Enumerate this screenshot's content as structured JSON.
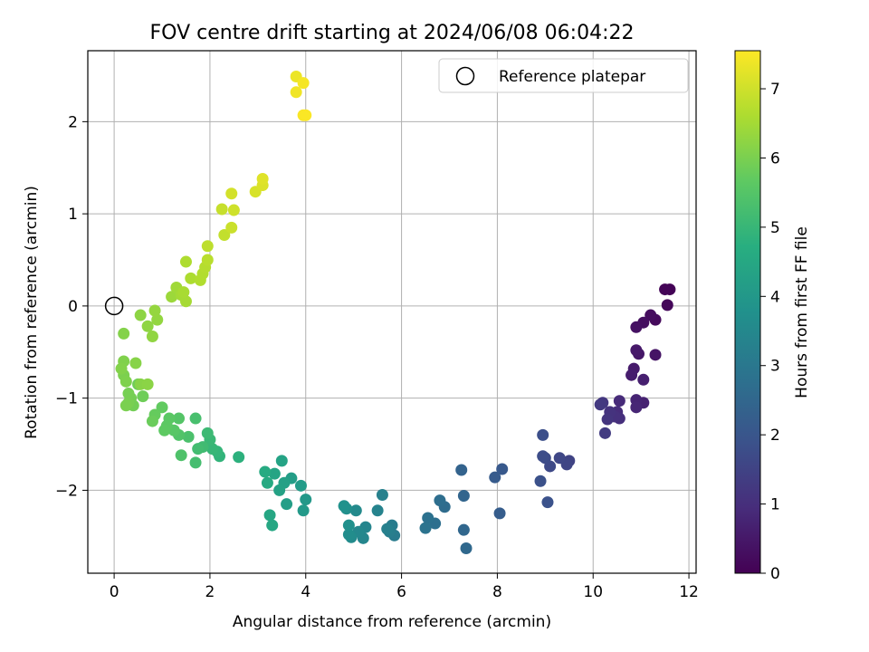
{
  "chart_data": {
    "type": "scatter",
    "title": "FOV centre drift starting at 2024/06/08 06:04:22",
    "xlabel": "Angular distance from reference (arcmin)",
    "ylabel": "Rotation from reference (arcmin)",
    "xlim": [
      -0.55,
      12.15
    ],
    "ylim": [
      -2.9,
      2.77
    ],
    "xticks": [
      0,
      2,
      4,
      6,
      8,
      10,
      12
    ],
    "yticks": [
      -2,
      -1,
      0,
      1,
      2
    ],
    "grid": true,
    "legend": {
      "location": "top-right",
      "entries": [
        "Reference platepar"
      ]
    },
    "reference_point": {
      "x": 0,
      "y": 0
    },
    "colorbar": {
      "label": "Hours from first FF file",
      "min": 0,
      "max": 7.55,
      "ticks": [
        0,
        1,
        2,
        3,
        4,
        5,
        6,
        7
      ],
      "colormap": "viridis"
    },
    "points": [
      [
        11.6,
        0.18,
        0.05
      ],
      [
        11.5,
        0.18,
        0.08
      ],
      [
        11.55,
        0.01,
        0.12
      ],
      [
        11.3,
        -0.15,
        0.2
      ],
      [
        11.2,
        -0.1,
        0.25
      ],
      [
        11.05,
        -0.18,
        0.3
      ],
      [
        10.9,
        -0.23,
        0.35
      ],
      [
        11.3,
        -0.53,
        0.4
      ],
      [
        10.95,
        -0.52,
        0.45
      ],
      [
        10.9,
        -0.48,
        0.5
      ],
      [
        10.85,
        -0.68,
        0.55
      ],
      [
        10.8,
        -0.75,
        0.6
      ],
      [
        11.05,
        -0.8,
        0.65
      ],
      [
        11.05,
        -1.05,
        0.7
      ],
      [
        10.9,
        -1.02,
        0.75
      ],
      [
        10.9,
        -1.1,
        0.8
      ],
      [
        10.55,
        -1.03,
        0.9
      ],
      [
        10.5,
        -1.15,
        0.95
      ],
      [
        10.55,
        -1.22,
        1.0
      ],
      [
        10.45,
        -1.2,
        1.05
      ],
      [
        10.35,
        -1.15,
        1.1
      ],
      [
        10.3,
        -1.23,
        1.15
      ],
      [
        10.2,
        -1.05,
        1.2
      ],
      [
        10.15,
        -1.07,
        1.25
      ],
      [
        10.25,
        -1.38,
        1.3
      ],
      [
        9.5,
        -1.68,
        1.5
      ],
      [
        9.45,
        -1.72,
        1.55
      ],
      [
        9.3,
        -1.65,
        1.6
      ],
      [
        9.1,
        -1.74,
        1.65
      ],
      [
        9.0,
        -1.65,
        1.7
      ],
      [
        8.95,
        -1.63,
        1.75
      ],
      [
        8.95,
        -1.4,
        1.8
      ],
      [
        8.9,
        -1.9,
        1.85
      ],
      [
        9.05,
        -2.13,
        1.9
      ],
      [
        8.1,
        -1.77,
        2.1
      ],
      [
        7.95,
        -1.86,
        2.15
      ],
      [
        8.05,
        -2.25,
        2.2
      ],
      [
        7.25,
        -1.78,
        2.4
      ],
      [
        7.3,
        -2.06,
        2.45
      ],
      [
        7.3,
        -2.43,
        2.5
      ],
      [
        7.35,
        -2.63,
        2.55
      ],
      [
        6.9,
        -2.18,
        2.65
      ],
      [
        6.8,
        -2.11,
        2.7
      ],
      [
        6.7,
        -2.36,
        2.75
      ],
      [
        6.55,
        -2.3,
        2.8
      ],
      [
        6.5,
        -2.41,
        2.85
      ],
      [
        5.85,
        -2.49,
        3.1
      ],
      [
        5.8,
        -2.38,
        3.15
      ],
      [
        5.75,
        -2.45,
        3.2
      ],
      [
        5.7,
        -2.42,
        3.25
      ],
      [
        5.6,
        -2.05,
        3.3
      ],
      [
        5.5,
        -2.22,
        3.35
      ],
      [
        5.25,
        -2.4,
        3.4
      ],
      [
        5.2,
        -2.52,
        3.45
      ],
      [
        5.1,
        -2.45,
        3.5
      ],
      [
        5.05,
        -2.22,
        3.55
      ],
      [
        4.95,
        -2.51,
        3.6
      ],
      [
        4.9,
        -2.48,
        3.65
      ],
      [
        4.85,
        -2.2,
        3.7
      ],
      [
        4.9,
        -2.38,
        3.75
      ],
      [
        4.8,
        -2.17,
        3.8
      ],
      [
        4.0,
        -2.1,
        4.0
      ],
      [
        3.95,
        -2.22,
        4.05
      ],
      [
        3.9,
        -1.95,
        4.1
      ],
      [
        3.7,
        -1.87,
        4.15
      ],
      [
        3.6,
        -2.15,
        4.2
      ],
      [
        3.55,
        -1.92,
        4.25
      ],
      [
        3.45,
        -2.0,
        4.3
      ],
      [
        3.5,
        -1.68,
        4.35
      ],
      [
        3.35,
        -1.82,
        4.4
      ],
      [
        3.25,
        -2.27,
        4.45
      ],
      [
        3.3,
        -2.38,
        4.5
      ],
      [
        3.2,
        -1.92,
        4.55
      ],
      [
        3.15,
        -1.8,
        4.6
      ],
      [
        2.6,
        -1.64,
        4.8
      ],
      [
        2.2,
        -1.63,
        4.9
      ],
      [
        2.15,
        -1.58,
        4.95
      ],
      [
        2.05,
        -1.55,
        5.0
      ],
      [
        2.0,
        -1.45,
        5.05
      ],
      [
        1.95,
        -1.38,
        5.1
      ],
      [
        1.85,
        -1.53,
        5.15
      ],
      [
        1.75,
        -1.55,
        5.2
      ],
      [
        1.7,
        -1.7,
        5.25
      ],
      [
        1.7,
        -1.22,
        5.3
      ],
      [
        1.55,
        -1.42,
        5.35
      ],
      [
        1.4,
        -1.62,
        5.4
      ],
      [
        1.35,
        -1.4,
        5.45
      ],
      [
        1.35,
        -1.22,
        5.5
      ],
      [
        1.25,
        -1.35,
        5.55
      ],
      [
        1.15,
        -1.22,
        5.6
      ],
      [
        1.1,
        -1.3,
        5.62
      ],
      [
        1.05,
        -1.35,
        5.65
      ],
      [
        1.0,
        -1.1,
        5.7
      ],
      [
        0.85,
        -1.18,
        5.75
      ],
      [
        0.8,
        -1.25,
        5.8
      ],
      [
        0.6,
        -0.98,
        5.85
      ],
      [
        0.5,
        -0.85,
        5.87
      ],
      [
        0.4,
        -1.08,
        5.9
      ],
      [
        0.35,
        -1.0,
        5.92
      ],
      [
        0.3,
        -0.95,
        5.95
      ],
      [
        0.3,
        -1.05,
        5.97
      ],
      [
        0.25,
        -1.08,
        6.0
      ],
      [
        0.2,
        -0.75,
        6.02
      ],
      [
        0.25,
        -0.82,
        6.05
      ],
      [
        0.2,
        -0.6,
        6.07
      ],
      [
        0.15,
        -0.68,
        6.1
      ],
      [
        0.2,
        -0.3,
        6.12
      ],
      [
        0.45,
        -0.62,
        6.15
      ],
      [
        0.55,
        -0.85,
        6.17
      ],
      [
        0.7,
        -0.85,
        6.2
      ],
      [
        0.55,
        -0.1,
        6.22
      ],
      [
        0.7,
        -0.22,
        6.25
      ],
      [
        0.8,
        -0.33,
        6.27
      ],
      [
        0.9,
        -0.15,
        6.3
      ],
      [
        0.85,
        -0.05,
        6.32
      ],
      [
        1.2,
        0.1,
        6.4
      ],
      [
        1.3,
        0.2,
        6.45
      ],
      [
        1.4,
        0.12,
        6.5
      ],
      [
        1.5,
        0.05,
        6.52
      ],
      [
        1.45,
        0.15,
        6.55
      ],
      [
        1.6,
        0.3,
        6.6
      ],
      [
        1.5,
        0.48,
        6.62
      ],
      [
        1.8,
        0.28,
        6.65
      ],
      [
        1.85,
        0.35,
        6.67
      ],
      [
        1.9,
        0.42,
        6.7
      ],
      [
        1.95,
        0.5,
        6.75
      ],
      [
        1.95,
        0.65,
        6.8
      ],
      [
        2.3,
        0.77,
        6.85
      ],
      [
        2.25,
        1.05,
        6.9
      ],
      [
        2.45,
        0.85,
        6.95
      ],
      [
        2.5,
        1.04,
        7.0
      ],
      [
        2.45,
        1.22,
        7.05
      ],
      [
        2.95,
        1.24,
        7.1
      ],
      [
        3.1,
        1.31,
        7.15
      ],
      [
        3.1,
        1.38,
        7.2
      ],
      [
        3.8,
        2.49,
        7.35
      ],
      [
        3.8,
        2.32,
        7.4
      ],
      [
        3.95,
        2.42,
        7.45
      ],
      [
        3.95,
        2.07,
        7.5
      ],
      [
        4.0,
        2.07,
        7.52
      ]
    ]
  }
}
